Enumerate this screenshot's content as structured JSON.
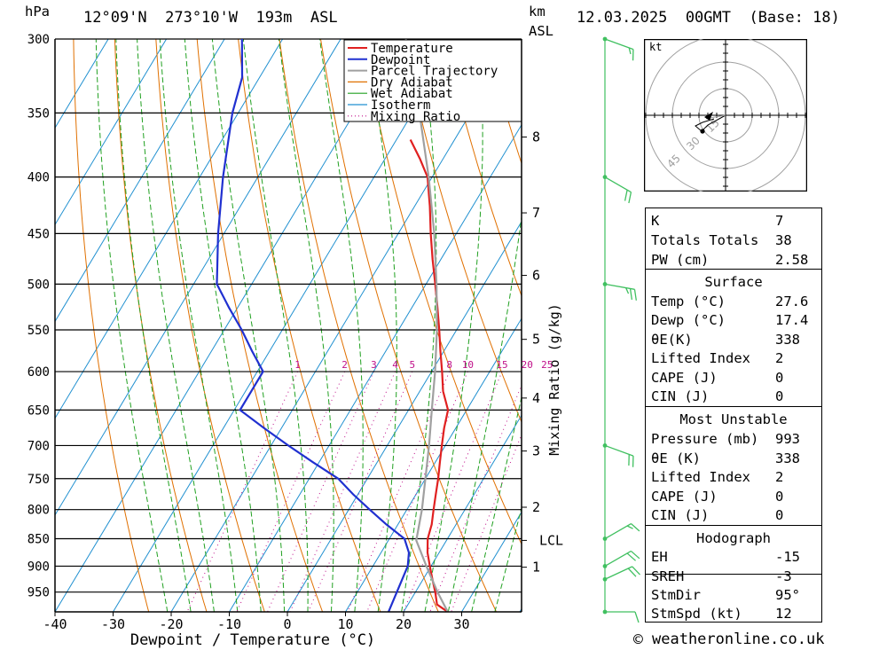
{
  "header": {
    "pressure_unit": "hPa",
    "location": "12°09'N  273°10'W  193m  ASL",
    "km_label": "km",
    "asl_label": "ASL",
    "datetime": "12.03.2025  00GMT  (Base: 18)"
  },
  "legend": [
    "Temperature",
    "Dewpoint",
    "Parcel Trajectory",
    "Dry Adiabat",
    "Wet Adiabat",
    "Isotherm",
    "Mixing Ratio"
  ],
  "colors": {
    "temperature": "#e02020",
    "dewpoint": "#2030d0",
    "parcel": "#a0a0a0",
    "dry_adiabat": "#e07000",
    "wet_adiabat": "#20a020",
    "isotherm": "#2090d0",
    "mixing_ratio": "#c0108a",
    "wind_barb": "#40c060"
  },
  "chart_data": {
    "type": "line",
    "title": "12°09'N  273°10'W  193m  ASL",
    "xlabel": "Dewpoint / Temperature (°C)",
    "ylabel": "hPa",
    "x_ticks": [
      "-40",
      "-30",
      "-20",
      "-10",
      "0",
      "10",
      "20",
      "30"
    ],
    "pressure_ticks": [
      "300",
      "350",
      "400",
      "450",
      "500",
      "550",
      "600",
      "650",
      "700",
      "750",
      "800",
      "850",
      "900",
      "950"
    ],
    "pressure_range": [
      300,
      990
    ],
    "km_ticks": [
      {
        "label": "8",
        "p": 368
      },
      {
        "label": "7",
        "p": 431
      },
      {
        "label": "6",
        "p": 491
      },
      {
        "label": "5",
        "p": 561
      },
      {
        "label": "4",
        "p": 634
      },
      {
        "label": "3",
        "p": 708
      },
      {
        "label": "2",
        "p": 796
      },
      {
        "label": "LCL",
        "p": 853
      },
      {
        "label": "1",
        "p": 902
      }
    ],
    "mixing_ratio_label": "Mixing Ratio (g/kg)",
    "mixing_ratio_values": [
      "1",
      "2",
      "3",
      "4",
      "5",
      "8",
      "10",
      "15",
      "20",
      "25"
    ],
    "series": [
      {
        "name": "Temperature",
        "points": [
          {
            "p": 990,
            "t": 27.6
          },
          {
            "p": 975,
            "t": 25.0
          },
          {
            "p": 950,
            "t": 23.4
          },
          {
            "p": 925,
            "t": 21.6
          },
          {
            "p": 900,
            "t": 19.8
          },
          {
            "p": 875,
            "t": 18.0
          },
          {
            "p": 850,
            "t": 16.6
          },
          {
            "p": 825,
            "t": 15.8
          },
          {
            "p": 800,
            "t": 14.6
          },
          {
            "p": 775,
            "t": 13.4
          },
          {
            "p": 750,
            "t": 12.2
          },
          {
            "p": 725,
            "t": 10.8
          },
          {
            "p": 700,
            "t": 9.4
          },
          {
            "p": 675,
            "t": 8.0
          },
          {
            "p": 650,
            "t": 6.8
          },
          {
            "p": 625,
            "t": 4.0
          },
          {
            "p": 600,
            "t": 1.8
          },
          {
            "p": 575,
            "t": -0.6
          },
          {
            "p": 550,
            "t": -3.0
          },
          {
            "p": 525,
            "t": -5.6
          },
          {
            "p": 500,
            "t": -8.4
          },
          {
            "p": 475,
            "t": -11.4
          },
          {
            "p": 450,
            "t": -14.4
          },
          {
            "p": 425,
            "t": -17.4
          },
          {
            "p": 400,
            "t": -20.8
          },
          {
            "p": 385,
            "t": -24.0
          },
          {
            "p": 370,
            "t": -27.6
          }
        ]
      },
      {
        "name": "Dewpoint",
        "points": [
          {
            "p": 990,
            "t": 17.4
          },
          {
            "p": 950,
            "t": 16.8
          },
          {
            "p": 900,
            "t": 16.0
          },
          {
            "p": 875,
            "t": 14.8
          },
          {
            "p": 850,
            "t": 12.6
          },
          {
            "p": 825,
            "t": 8.0
          },
          {
            "p": 800,
            "t": 3.6
          },
          {
            "p": 775,
            "t": -0.8
          },
          {
            "p": 750,
            "t": -5.0
          },
          {
            "p": 725,
            "t": -11.0
          },
          {
            "p": 700,
            "t": -17.0
          },
          {
            "p": 675,
            "t": -23.0
          },
          {
            "p": 650,
            "t": -29.0
          },
          {
            "p": 625,
            "t": -29.0
          },
          {
            "p": 600,
            "t": -29.0
          },
          {
            "p": 575,
            "t": -33.0
          },
          {
            "p": 550,
            "t": -37.0
          },
          {
            "p": 525,
            "t": -41.5
          },
          {
            "p": 500,
            "t": -46.0
          },
          {
            "p": 450,
            "t": -51.0
          },
          {
            "p": 400,
            "t": -56.0
          },
          {
            "p": 350,
            "t": -61.0
          },
          {
            "p": 325,
            "t": -63.0
          },
          {
            "p": 300,
            "t": -67.0
          }
        ]
      },
      {
        "name": "Parcel Trajectory",
        "points": [
          {
            "p": 990,
            "t": 27.6
          },
          {
            "p": 950,
            "t": 23.8
          },
          {
            "p": 900,
            "t": 19.2
          },
          {
            "p": 853,
            "t": 14.8
          },
          {
            "p": 800,
            "t": 12.6
          },
          {
            "p": 750,
            "t": 10.0
          },
          {
            "p": 700,
            "t": 7.2
          },
          {
            "p": 650,
            "t": 4.0
          },
          {
            "p": 600,
            "t": 0.6
          },
          {
            "p": 550,
            "t": -3.4
          },
          {
            "p": 500,
            "t": -8.2
          },
          {
            "p": 450,
            "t": -13.8
          },
          {
            "p": 400,
            "t": -20.6
          },
          {
            "p": 350,
            "t": -28.8
          },
          {
            "p": 300,
            "t": -38.8
          }
        ]
      }
    ],
    "wind_profile": [
      {
        "p": 300,
        "dir": 250,
        "spd": 15
      },
      {
        "p": 400,
        "dir": 240,
        "spd": 20
      },
      {
        "p": 500,
        "dir": 260,
        "spd": 25
      },
      {
        "p": 700,
        "dir": 250,
        "spd": 20
      },
      {
        "p": 850,
        "dir": 300,
        "spd": 15
      },
      {
        "p": 900,
        "dir": 300,
        "spd": 20
      },
      {
        "p": 925,
        "dir": 295,
        "spd": 20
      },
      {
        "p": 990,
        "dir": 270,
        "spd": 10
      }
    ]
  },
  "hodograph": {
    "unit": "kt",
    "ring_labels": [
      "15",
      "30",
      "45"
    ]
  },
  "indices": [
    {
      "label": "K",
      "value": "7"
    },
    {
      "label": "Totals Totals",
      "value": "38"
    },
    {
      "label": "PW (cm)",
      "value": "2.58"
    }
  ],
  "surface": {
    "title": "Surface",
    "rows": [
      {
        "label": "Temp (°C)",
        "value": "27.6"
      },
      {
        "label": "Dewp (°C)",
        "value": "17.4"
      },
      {
        "label": "θE(K)",
        "value": "338"
      },
      {
        "label": "Lifted Index",
        "value": "2"
      },
      {
        "label": "CAPE (J)",
        "value": "0"
      },
      {
        "label": "CIN (J)",
        "value": "0"
      }
    ]
  },
  "most_unstable": {
    "title": "Most Unstable",
    "rows": [
      {
        "label": "Pressure (mb)",
        "value": "993"
      },
      {
        "label": "θE (K)",
        "value": "338"
      },
      {
        "label": "Lifted Index",
        "value": "2"
      },
      {
        "label": "CAPE (J)",
        "value": "0"
      },
      {
        "label": "CIN (J)",
        "value": "0"
      }
    ]
  },
  "hodograph_table": {
    "title": "Hodograph",
    "rows": [
      {
        "label": "EH",
        "value": "-15"
      },
      {
        "label": "SREH",
        "value": "-3"
      },
      {
        "label": "StmDir",
        "value": "95°"
      },
      {
        "label": "StmSpd (kt)",
        "value": "12"
      }
    ]
  },
  "footer": {
    "copyright_symbol": "©",
    "site": "weatheronline.co.uk"
  }
}
